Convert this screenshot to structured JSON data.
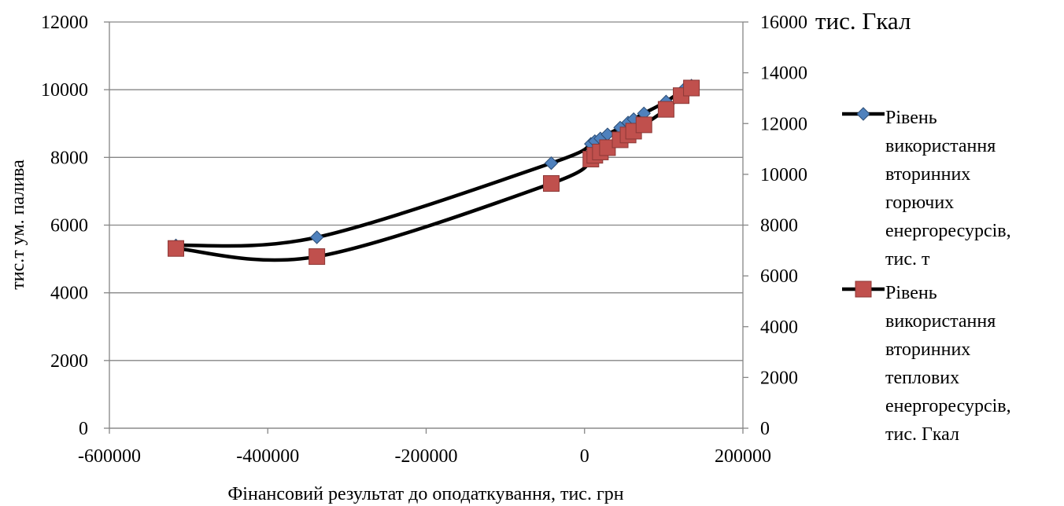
{
  "chart_data": {
    "type": "scatter",
    "xlabel": "Фінансовий результат до оподаткування, тис. грн",
    "ylabel": "тис.т ум. палива",
    "y2_unit_label": "тис. Гкал",
    "xlim": [
      -600000,
      200000
    ],
    "ylim": [
      0,
      12000
    ],
    "y2lim": [
      0,
      16000
    ],
    "x_ticks": [
      "-600000",
      "-400000",
      "-200000",
      "0",
      "200000"
    ],
    "y_ticks": [
      "0",
      "2000",
      "4000",
      "6000",
      "8000",
      "10000",
      "12000"
    ],
    "y2_ticks": [
      "0",
      "2000",
      "4000",
      "6000",
      "8000",
      "10000",
      "12000",
      "14000",
      "16000"
    ],
    "grid": "horizontal",
    "legend_position": "right",
    "series": [
      {
        "name_lines": [
          "Рівень",
          "використання",
          "вторинних",
          "горючих",
          "енергоресурсів,",
          "тис. т"
        ],
        "axis": "left",
        "marker": "diamond",
        "color": "#4f81bd",
        "x": [
          -516000,
          -338000,
          -42000,
          8000,
          13000,
          20000,
          29000,
          45000,
          55000,
          62000,
          75000,
          103000,
          125000,
          135000
        ],
        "y": [
          5400,
          5640,
          7830,
          8400,
          8480,
          8560,
          8680,
          8880,
          9030,
          9130,
          9300,
          9650,
          10000,
          10120
        ]
      },
      {
        "name_lines": [
          "Рівень",
          "використання",
          "вторинних",
          "теплових",
          "енергоресурсів,",
          "тис. Гкал"
        ],
        "axis": "right",
        "marker": "square",
        "color": "#c0504d",
        "x": [
          -516000,
          -338000,
          -42000,
          8000,
          13000,
          20000,
          29000,
          45000,
          55000,
          62000,
          75000,
          103000,
          122000,
          135000
        ],
        "y": [
          7080,
          6760,
          9640,
          10600,
          10750,
          10880,
          11050,
          11360,
          11550,
          11700,
          11950,
          12560,
          13100,
          13400
        ]
      }
    ]
  }
}
